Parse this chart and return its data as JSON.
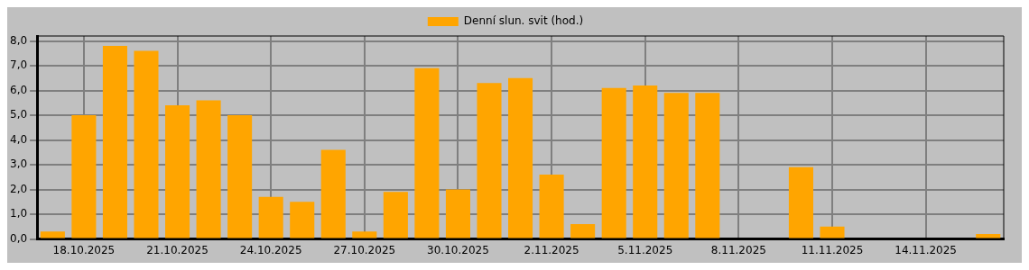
{
  "chart_data": {
    "type": "bar",
    "categories": [
      null,
      "18.10.2025",
      null,
      null,
      "21.10.2025",
      null,
      null,
      "24.10.2025",
      null,
      null,
      "27.10.2025",
      null,
      null,
      "30.10.2025",
      null,
      null,
      "2.11.2025",
      null,
      null,
      "5.11.2025",
      null,
      null,
      "8.11.2025",
      null,
      null,
      "11.11.2025",
      null,
      null,
      "14.11.2025",
      null,
      null
    ],
    "series": [
      {
        "name": "Denní slun. svit (hod.)",
        "color": "#ffa500",
        "values": [
          0.3,
          5.0,
          7.8,
          7.6,
          5.4,
          5.6,
          5.0,
          1.7,
          1.5,
          3.6,
          0.3,
          1.9,
          6.9,
          2.0,
          6.3,
          6.5,
          2.6,
          0.6,
          6.1,
          6.2,
          5.9,
          5.9,
          0,
          0,
          2.9,
          0.5,
          0,
          0,
          0,
          0,
          0.2
        ]
      }
    ],
    "ylim": [
      0,
      8.2
    ],
    "yticks": [
      {
        "value": 0,
        "label": "0,0"
      },
      {
        "value": 1,
        "label": "1,0"
      },
      {
        "value": 2,
        "label": "2,0"
      },
      {
        "value": 3,
        "label": "3,0"
      },
      {
        "value": 4,
        "label": "4,0"
      },
      {
        "value": 5,
        "label": "5,0"
      },
      {
        "value": 6,
        "label": "6,0"
      },
      {
        "value": 7,
        "label": "7,0"
      },
      {
        "value": 8,
        "label": "8,0"
      }
    ],
    "grid": true,
    "legend": "top"
  }
}
